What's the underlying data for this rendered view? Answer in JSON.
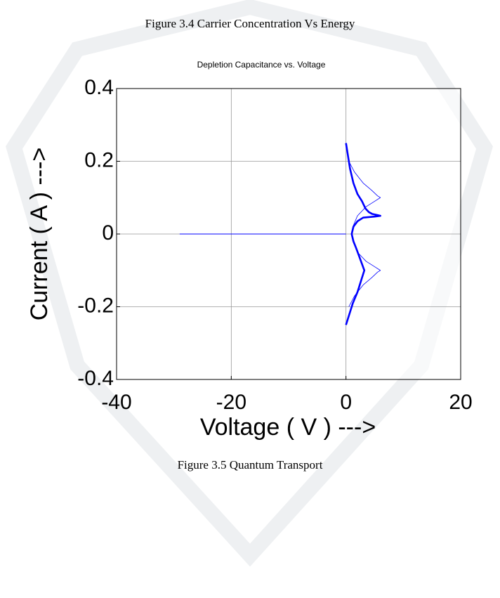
{
  "captions": {
    "top": "Figure  3.4  Carrier Concentration Vs Energy",
    "bottom": "Figure  3.5  Quantum Transport"
  },
  "chart_data": {
    "type": "line",
    "title": "Depletion Capacitance vs. Voltage",
    "x_label": "Voltage ( V ) --->",
    "y_label": "Current ( A ) --->",
    "xlim": [
      -40,
      20
    ],
    "ylim": [
      -0.4,
      0.4
    ],
    "xticks": [
      -40,
      -20,
      0,
      20
    ],
    "yticks": [
      -0.4,
      -0.2,
      0,
      0.2,
      0.4
    ],
    "grid": true,
    "series": [
      {
        "color": "#0000ff",
        "x": [
          -29,
          0
        ],
        "values": [
          0,
          0
        ]
      },
      {
        "color": "#0000ff",
        "x": [
          0.5,
          1.5,
          3,
          4.5,
          5.5,
          6,
          5,
          3.5,
          2,
          1.2,
          0.9,
          1.2,
          2,
          3.5,
          5,
          6,
          5.5,
          4.5,
          3,
          1.5,
          0.5
        ],
        "values": [
          0.2,
          0.17,
          0.14,
          0.12,
          0.105,
          0.1,
          0.09,
          0.075,
          0.05,
          0.02,
          0,
          -0.02,
          -0.05,
          -0.075,
          -0.09,
          -0.1,
          -0.105,
          -0.12,
          -0.14,
          -0.17,
          -0.2
        ]
      },
      {
        "color": "#0000ff",
        "x": [
          0,
          0.3,
          0.7,
          1.3,
          2,
          2.8,
          3.4,
          4,
          4.6,
          5.5,
          6,
          5,
          3,
          2,
          1.3,
          1,
          1.3,
          1.8,
          2.5,
          3.2,
          2.6,
          2,
          1.2,
          0.6,
          0
        ],
        "values": [
          0.25,
          0.22,
          0.18,
          0.14,
          0.11,
          0.09,
          0.07,
          0.06,
          0.055,
          0.052,
          0.05,
          0.048,
          0.045,
          0.035,
          0.02,
          0,
          -0.02,
          -0.04,
          -0.07,
          -0.1,
          -0.13,
          -0.16,
          -0.19,
          -0.22,
          -0.25
        ]
      }
    ]
  }
}
